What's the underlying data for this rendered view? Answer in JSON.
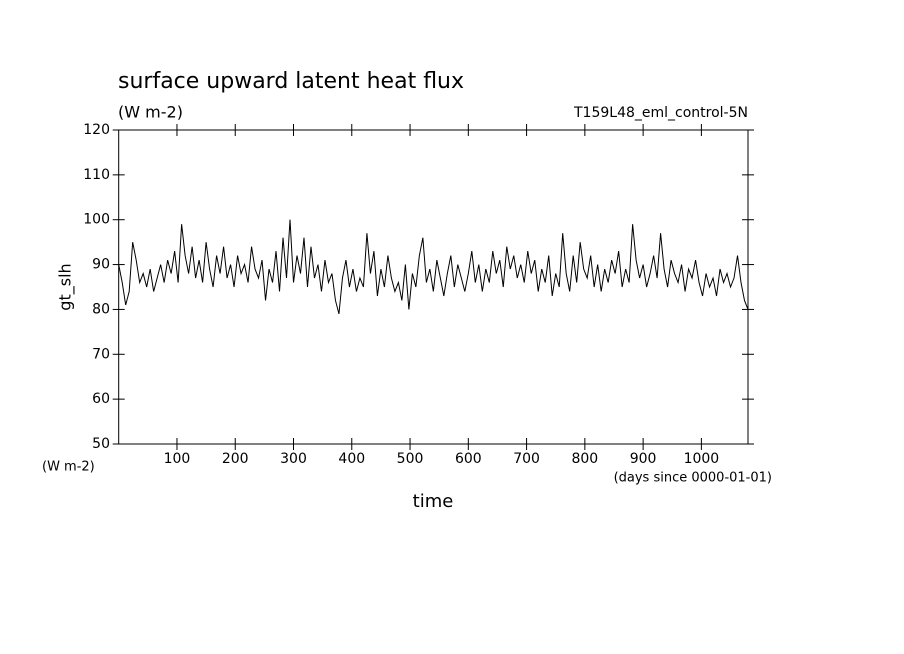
{
  "chart_data": {
    "type": "line",
    "title": "surface upward latent heat flux",
    "subtitle": "(W m-2)",
    "annotation": "T159L48_eml_control-5N",
    "y_label": "gt_slh",
    "y_unit": "(W m-2)",
    "x_label": "time",
    "x_unit": "(days since 0000-01-01)",
    "xlim": [
      0,
      1080
    ],
    "ylim": [
      50,
      120
    ],
    "xticks": [
      100,
      200,
      300,
      400,
      500,
      600,
      700,
      800,
      900,
      1000
    ],
    "yticks": [
      50,
      60,
      70,
      80,
      90,
      100,
      110,
      120
    ],
    "color": "#000000",
    "x": [
      0,
      6,
      12,
      18,
      24,
      30,
      36,
      42,
      48,
      54,
      60,
      66,
      72,
      78,
      84,
      90,
      96,
      102,
      108,
      114,
      120,
      126,
      132,
      138,
      144,
      150,
      156,
      162,
      168,
      174,
      180,
      186,
      192,
      198,
      204,
      210,
      216,
      222,
      228,
      234,
      240,
      246,
      252,
      258,
      264,
      270,
      276,
      282,
      288,
      294,
      300,
      306,
      312,
      318,
      324,
      330,
      336,
      342,
      348,
      354,
      360,
      366,
      372,
      378,
      384,
      390,
      396,
      402,
      408,
      414,
      420,
      426,
      432,
      438,
      444,
      450,
      456,
      462,
      468,
      474,
      480,
      486,
      492,
      498,
      504,
      510,
      516,
      522,
      528,
      534,
      540,
      546,
      552,
      558,
      564,
      570,
      576,
      582,
      588,
      594,
      600,
      606,
      612,
      618,
      624,
      630,
      636,
      642,
      648,
      654,
      660,
      666,
      672,
      678,
      684,
      690,
      696,
      702,
      708,
      714,
      720,
      726,
      732,
      738,
      744,
      750,
      756,
      762,
      768,
      774,
      780,
      786,
      792,
      798,
      804,
      810,
      816,
      822,
      828,
      834,
      840,
      846,
      852,
      858,
      864,
      870,
      876,
      882,
      888,
      894,
      900,
      906,
      912,
      918,
      924,
      930,
      936,
      942,
      948,
      954,
      960,
      966,
      972,
      978,
      984,
      990,
      996,
      1002,
      1008,
      1014,
      1020,
      1026,
      1032,
      1038,
      1044,
      1050,
      1056,
      1062,
      1068,
      1074,
      1080
    ],
    "values": [
      90,
      86,
      81,
      84,
      95,
      91,
      86,
      88,
      85,
      89,
      84,
      87,
      90,
      86,
      91,
      88,
      93,
      86,
      99,
      92,
      88,
      94,
      87,
      91,
      86,
      95,
      89,
      85,
      92,
      88,
      94,
      87,
      90,
      85,
      92,
      88,
      90,
      86,
      94,
      89,
      87,
      91,
      82,
      89,
      86,
      93,
      84,
      96,
      87,
      100,
      86,
      92,
      88,
      96,
      85,
      94,
      87,
      90,
      84,
      91,
      86,
      88,
      82,
      79,
      87,
      91,
      85,
      89,
      84,
      87,
      85,
      97,
      88,
      93,
      83,
      89,
      85,
      92,
      87,
      84,
      86,
      82,
      90,
      80,
      88,
      85,
      92,
      96,
      86,
      89,
      84,
      91,
      87,
      83,
      88,
      92,
      85,
      90,
      87,
      84,
      88,
      93,
      86,
      90,
      84,
      89,
      86,
      93,
      88,
      91,
      85,
      94,
      89,
      92,
      87,
      90,
      86,
      93,
      88,
      91,
      84,
      89,
      86,
      92,
      83,
      88,
      85,
      97,
      88,
      84,
      92,
      86,
      95,
      89,
      87,
      92,
      85,
      90,
      84,
      89,
      86,
      91,
      88,
      93,
      85,
      89,
      86,
      99,
      91,
      87,
      90,
      85,
      88,
      92,
      87,
      97,
      89,
      85,
      91,
      88,
      86,
      90,
      84,
      89,
      87,
      91,
      86,
      83,
      88,
      85,
      87,
      83,
      89,
      86,
      88,
      85,
      87,
      92,
      86,
      82,
      80
    ]
  }
}
